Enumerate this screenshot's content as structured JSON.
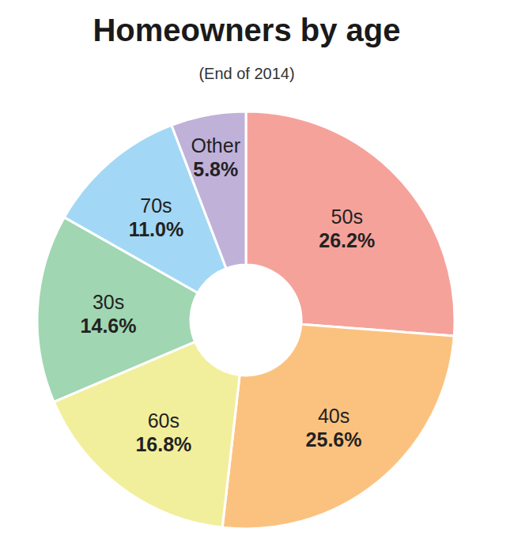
{
  "chart_data": {
    "type": "pie",
    "title": "Homeowners by age",
    "subtitle": "(End of 2014)",
    "categories": [
      "50s",
      "40s",
      "60s",
      "30s",
      "70s",
      "Other"
    ],
    "values": [
      26.2,
      25.6,
      16.8,
      14.6,
      11.0,
      5.8
    ],
    "value_labels": [
      "26.2%",
      "25.6%",
      "16.8%",
      "14.6%",
      "11.0%",
      "5.8%"
    ],
    "colors": [
      "#f5a29b",
      "#fbc27f",
      "#f2ef9c",
      "#a0d6b1",
      "#a2d8f5",
      "#c0b1d9"
    ],
    "data_labels": true
  }
}
